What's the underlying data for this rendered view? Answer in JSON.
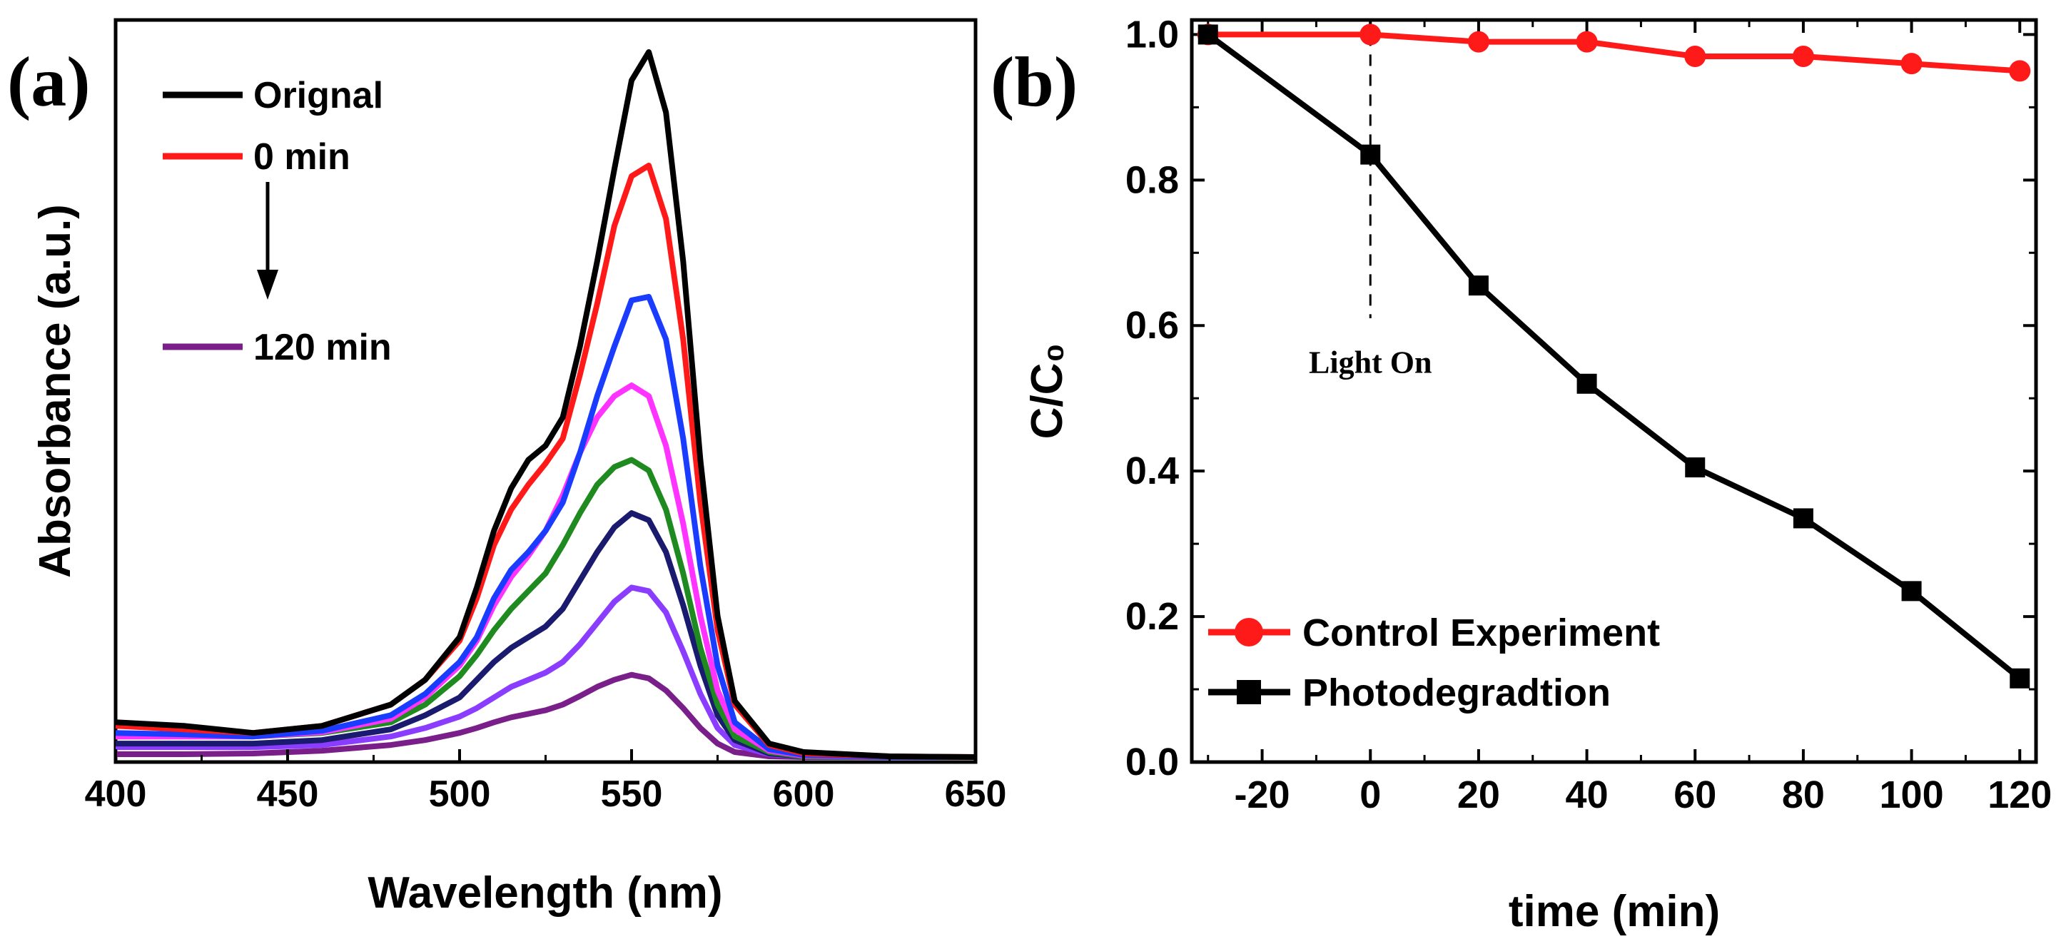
{
  "chart_data": [
    {
      "panel_label": "(a)",
      "type": "line",
      "xlabel": "Wavelength (nm)",
      "ylabel": "Absorbance (a.u.)",
      "xlim": [
        400,
        650
      ],
      "ylim": [
        0,
        1.0
      ],
      "xticks": [
        400,
        450,
        500,
        550,
        600,
        650
      ],
      "legend": [
        {
          "label": "Orignal",
          "color": "#000000"
        },
        {
          "label": "0 min",
          "color": "#ff1a1a"
        },
        {
          "label": "120 min",
          "color": "#7a1f8a"
        }
      ],
      "series": [
        {
          "name": "Orignal",
          "color": "#000000",
          "x": [
            400,
            420,
            440,
            460,
            480,
            490,
            500,
            505,
            510,
            515,
            520,
            525,
            530,
            535,
            540,
            545,
            550,
            555,
            560,
            565,
            570,
            575,
            580,
            590,
            600,
            625,
            650
          ],
          "y": [
            0.05,
            0.045,
            0.035,
            0.045,
            0.075,
            0.11,
            0.17,
            0.24,
            0.32,
            0.38,
            0.42,
            0.44,
            0.48,
            0.58,
            0.7,
            0.83,
            0.955,
            0.995,
            0.91,
            0.7,
            0.42,
            0.2,
            0.08,
            0.02,
            0.008,
            0.002,
            0.001
          ]
        },
        {
          "name": "0 min",
          "color": "#ff1a1a",
          "x": [
            400,
            420,
            440,
            460,
            480,
            490,
            500,
            505,
            510,
            515,
            520,
            525,
            530,
            535,
            540,
            545,
            550,
            555,
            560,
            565,
            570,
            575,
            580,
            590,
            600,
            625,
            650
          ],
          "y": [
            0.045,
            0.04,
            0.035,
            0.045,
            0.075,
            0.11,
            0.165,
            0.225,
            0.3,
            0.35,
            0.385,
            0.415,
            0.45,
            0.54,
            0.64,
            0.75,
            0.82,
            0.835,
            0.76,
            0.59,
            0.36,
            0.18,
            0.075,
            0.018,
            0.006,
            0.002,
            0.001
          ]
        },
        {
          "name": "",
          "color": "#1a3cff",
          "x": [
            400,
            420,
            440,
            460,
            480,
            490,
            500,
            505,
            510,
            515,
            520,
            525,
            530,
            535,
            540,
            545,
            550,
            555,
            560,
            565,
            570,
            575,
            580,
            590,
            600,
            625,
            650
          ],
          "y": [
            0.035,
            0.033,
            0.03,
            0.038,
            0.06,
            0.09,
            0.135,
            0.17,
            0.225,
            0.265,
            0.29,
            0.32,
            0.36,
            0.43,
            0.51,
            0.58,
            0.645,
            0.65,
            0.59,
            0.45,
            0.27,
            0.13,
            0.05,
            0.012,
            0.004,
            0.001,
            0.001
          ]
        },
        {
          "name": "",
          "color": "#ff33ff",
          "x": [
            400,
            420,
            440,
            460,
            480,
            490,
            500,
            505,
            510,
            515,
            520,
            525,
            530,
            535,
            540,
            545,
            550,
            555,
            560,
            565,
            570,
            575,
            580,
            590,
            600,
            625,
            650
          ],
          "y": [
            0.03,
            0.03,
            0.03,
            0.036,
            0.055,
            0.085,
            0.13,
            0.165,
            0.215,
            0.255,
            0.285,
            0.32,
            0.37,
            0.43,
            0.48,
            0.51,
            0.525,
            0.51,
            0.44,
            0.33,
            0.2,
            0.095,
            0.04,
            0.01,
            0.003,
            0.001,
            0.001
          ]
        },
        {
          "name": "",
          "color": "#1f8a1f",
          "x": [
            400,
            420,
            440,
            460,
            480,
            490,
            500,
            505,
            510,
            515,
            520,
            525,
            530,
            535,
            540,
            545,
            550,
            555,
            560,
            565,
            570,
            575,
            580,
            590,
            600,
            625,
            650
          ],
          "y": [
            0.03,
            0.03,
            0.03,
            0.035,
            0.05,
            0.075,
            0.115,
            0.145,
            0.18,
            0.21,
            0.235,
            0.26,
            0.3,
            0.345,
            0.385,
            0.41,
            0.42,
            0.405,
            0.35,
            0.26,
            0.155,
            0.075,
            0.03,
            0.008,
            0.002,
            0.001,
            0.001
          ]
        },
        {
          "name": "",
          "color": "#1a1a6e",
          "x": [
            400,
            420,
            440,
            460,
            480,
            490,
            500,
            505,
            510,
            515,
            520,
            525,
            530,
            535,
            540,
            545,
            550,
            555,
            560,
            565,
            570,
            575,
            580,
            590,
            600,
            625,
            650
          ],
          "y": [
            0.02,
            0.02,
            0.02,
            0.025,
            0.04,
            0.06,
            0.085,
            0.11,
            0.135,
            0.155,
            0.17,
            0.185,
            0.21,
            0.25,
            0.29,
            0.325,
            0.345,
            0.335,
            0.29,
            0.215,
            0.13,
            0.06,
            0.025,
            0.006,
            0.002,
            0.001,
            0.001
          ]
        },
        {
          "name": "",
          "color": "#8a3cff",
          "x": [
            400,
            420,
            440,
            460,
            480,
            490,
            500,
            505,
            510,
            515,
            520,
            525,
            530,
            535,
            540,
            545,
            550,
            555,
            560,
            565,
            570,
            575,
            580,
            590,
            600,
            625,
            650
          ],
          "y": [
            0.015,
            0.015,
            0.015,
            0.018,
            0.03,
            0.042,
            0.058,
            0.07,
            0.085,
            0.1,
            0.11,
            0.12,
            0.135,
            0.16,
            0.19,
            0.22,
            0.24,
            0.235,
            0.205,
            0.15,
            0.09,
            0.042,
            0.018,
            0.005,
            0.002,
            0.001,
            0.001
          ]
        },
        {
          "name": "120 min",
          "color": "#7a1f8a",
          "x": [
            400,
            420,
            440,
            460,
            480,
            490,
            500,
            505,
            510,
            515,
            520,
            525,
            530,
            535,
            540,
            545,
            550,
            555,
            560,
            565,
            570,
            575,
            580,
            590,
            600,
            625,
            650
          ],
          "y": [
            0.005,
            0.005,
            0.006,
            0.01,
            0.018,
            0.025,
            0.035,
            0.042,
            0.05,
            0.057,
            0.062,
            0.067,
            0.075,
            0.087,
            0.1,
            0.11,
            0.117,
            0.112,
            0.095,
            0.07,
            0.042,
            0.02,
            0.008,
            0.002,
            0.001,
            0.001,
            0.001
          ]
        }
      ]
    },
    {
      "panel_label": "(b)",
      "type": "line",
      "xlabel": "time (min)",
      "ylabel": "C/C₀",
      "xlim": [
        -33,
        123
      ],
      "ylim": [
        0.0,
        1.02
      ],
      "xticks": [
        -20,
        0,
        20,
        40,
        60,
        80,
        100,
        120
      ],
      "yticks": [
        0.0,
        0.2,
        0.4,
        0.6,
        0.8,
        1.0
      ],
      "annotation": {
        "text": "Light On",
        "x": 0
      },
      "series": [
        {
          "name": "Control Experiment",
          "color": "#ff1a1a",
          "marker": "circle",
          "x": [
            -30,
            0,
            20,
            40,
            60,
            80,
            100,
            120
          ],
          "y": [
            1.0,
            1.0,
            0.99,
            0.99,
            0.97,
            0.97,
            0.96,
            0.95
          ]
        },
        {
          "name": "Photodegradtion",
          "color": "#000000",
          "marker": "square",
          "x": [
            -30,
            0,
            20,
            40,
            60,
            80,
            100,
            120
          ],
          "y": [
            1.0,
            0.835,
            0.655,
            0.52,
            0.405,
            0.335,
            0.235,
            0.115
          ]
        }
      ]
    }
  ]
}
